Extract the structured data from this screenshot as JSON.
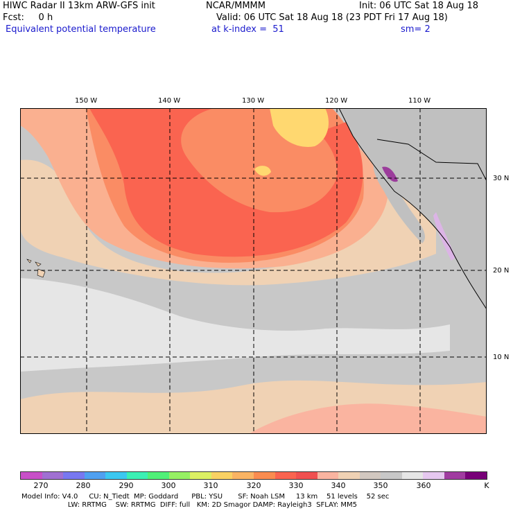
{
  "header": {
    "title_left": "HIWC Radar II 13km ARW-GFS init",
    "org": "NCAR/MMMM",
    "init": "Init: 06 UTC Sat 18 Aug 18",
    "fcst": "Fcst:     0 h",
    "valid": "Valid: 06 UTC Sat 18 Aug 18 (23 PDT Fri 17 Aug 18)",
    "field": "Equivalent potential temperature",
    "level": "at k-index =  51",
    "sm": "sm= 2"
  },
  "map": {
    "lon_labels": [
      "150 W",
      "140 W",
      "130 W",
      "120 W",
      "110 W"
    ],
    "lat_labels": [
      "30 N",
      "20 N",
      "10 N"
    ],
    "colors": {
      "ocean_gray": "#c8c8c8",
      "light_gray": "#e6e6e6",
      "tan": "#f0d2b4",
      "salmon": "#fab090",
      "orange": "#fa8c64",
      "red": "#fa6450",
      "yellow": "#ffd870",
      "land_gray": "#c0c0c0",
      "purple": "#9b3c9b",
      "lavender": "#dcb4e6"
    }
  },
  "colorbar": {
    "colors": [
      "#c850c8",
      "#a070d2",
      "#7878f0",
      "#50a0f0",
      "#3cc8f0",
      "#3cf0b4",
      "#50f078",
      "#96f064",
      "#dcf064",
      "#fad264",
      "#fab464",
      "#fa8c50",
      "#fa6450",
      "#f05050",
      "#fab4a0",
      "#f0d2b4",
      "#d2c8c0",
      "#c8c8c8",
      "#e6e6e6",
      "#e6c8f0",
      "#a03ca0",
      "#780078"
    ],
    "ticks": [
      "270",
      "280",
      "290",
      "300",
      "310",
      "320",
      "330",
      "340",
      "350",
      "360",
      "K"
    ]
  },
  "footer": {
    "line1": "Model Info: V4.0     CU: N_Tiedt  MP: Goddard      PBL: YSU       SF: Noah LSM     13 km    51 levels    52 sec",
    "line2": "                     LW: RRTMG    SW: RRTMG  DIFF: full   KM: 2D Smagor DAMP: Rayleigh3  SFLAY: MM5"
  }
}
